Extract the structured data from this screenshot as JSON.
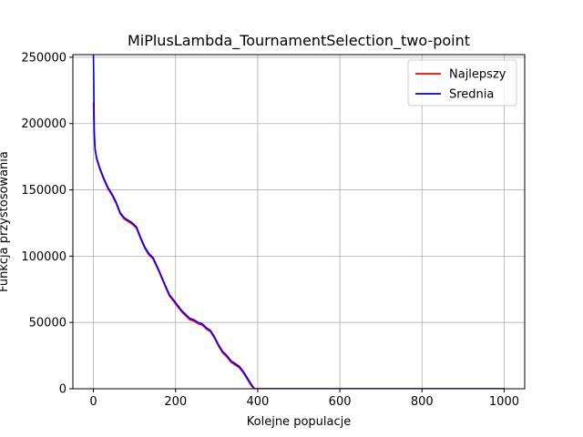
{
  "chart_data": {
    "type": "line",
    "title": "MiPlusLambda_TournamentSelection_two-point",
    "xlabel": "Kolejne populacje",
    "ylabel": "Funkcja przystosowania",
    "xlim": [
      -50,
      1050
    ],
    "ylim": [
      0,
      252000
    ],
    "xticks": [
      0,
      200,
      400,
      600,
      800,
      1000
    ],
    "yticks": [
      0,
      50000,
      100000,
      150000,
      200000,
      250000
    ],
    "grid": true,
    "legend_position": "top-right",
    "series": [
      {
        "name": "Najlepszy",
        "color": "#ff0000",
        "x": [
          0,
          2,
          4,
          8,
          15,
          25,
          35,
          45,
          55,
          65,
          75,
          85,
          95,
          105,
          115,
          125,
          135,
          145,
          160,
          175,
          185,
          195,
          205,
          215,
          225,
          235,
          245,
          255,
          265,
          275,
          285,
          295,
          305,
          315,
          325,
          335,
          345,
          355,
          365,
          375,
          385,
          392,
          400,
          500,
          600,
          700,
          800,
          900,
          1000
        ],
        "y": [
          216000,
          190000,
          180000,
          173000,
          166000,
          158000,
          151000,
          146000,
          140000,
          132000,
          128000,
          126000,
          124000,
          121000,
          113000,
          106000,
          101000,
          98000,
          88000,
          77000,
          70000,
          66000,
          62000,
          58000,
          55000,
          52000,
          51000,
          49000,
          48000,
          45000,
          43000,
          38000,
          32000,
          27000,
          24000,
          20000,
          18000,
          16000,
          12000,
          7000,
          2000,
          0,
          0,
          0,
          0,
          0,
          0,
          0,
          0
        ]
      },
      {
        "name": "Srednia",
        "color": "#0000ff",
        "x": [
          0,
          1,
          2,
          4,
          8,
          15,
          25,
          35,
          45,
          55,
          65,
          75,
          85,
          95,
          105,
          115,
          125,
          135,
          145,
          160,
          175,
          185,
          195,
          205,
          215,
          225,
          235,
          245,
          255,
          265,
          275,
          285,
          295,
          305,
          315,
          325,
          335,
          345,
          355,
          365,
          375,
          385,
          392,
          400,
          500,
          600,
          700,
          800,
          900,
          1000
        ],
        "y": [
          252000,
          230000,
          195000,
          181000,
          174000,
          167000,
          159000,
          152000,
          147000,
          141000,
          133000,
          129000,
          127000,
          125000,
          122000,
          114000,
          107000,
          102000,
          99000,
          89000,
          78000,
          71000,
          67000,
          63000,
          59000,
          56000,
          53000,
          52000,
          50000,
          49000,
          46000,
          44000,
          39000,
          33000,
          28000,
          25000,
          21000,
          19000,
          17000,
          13000,
          8000,
          3000,
          0,
          0,
          0,
          0,
          0,
          0,
          0,
          0
        ]
      }
    ]
  }
}
